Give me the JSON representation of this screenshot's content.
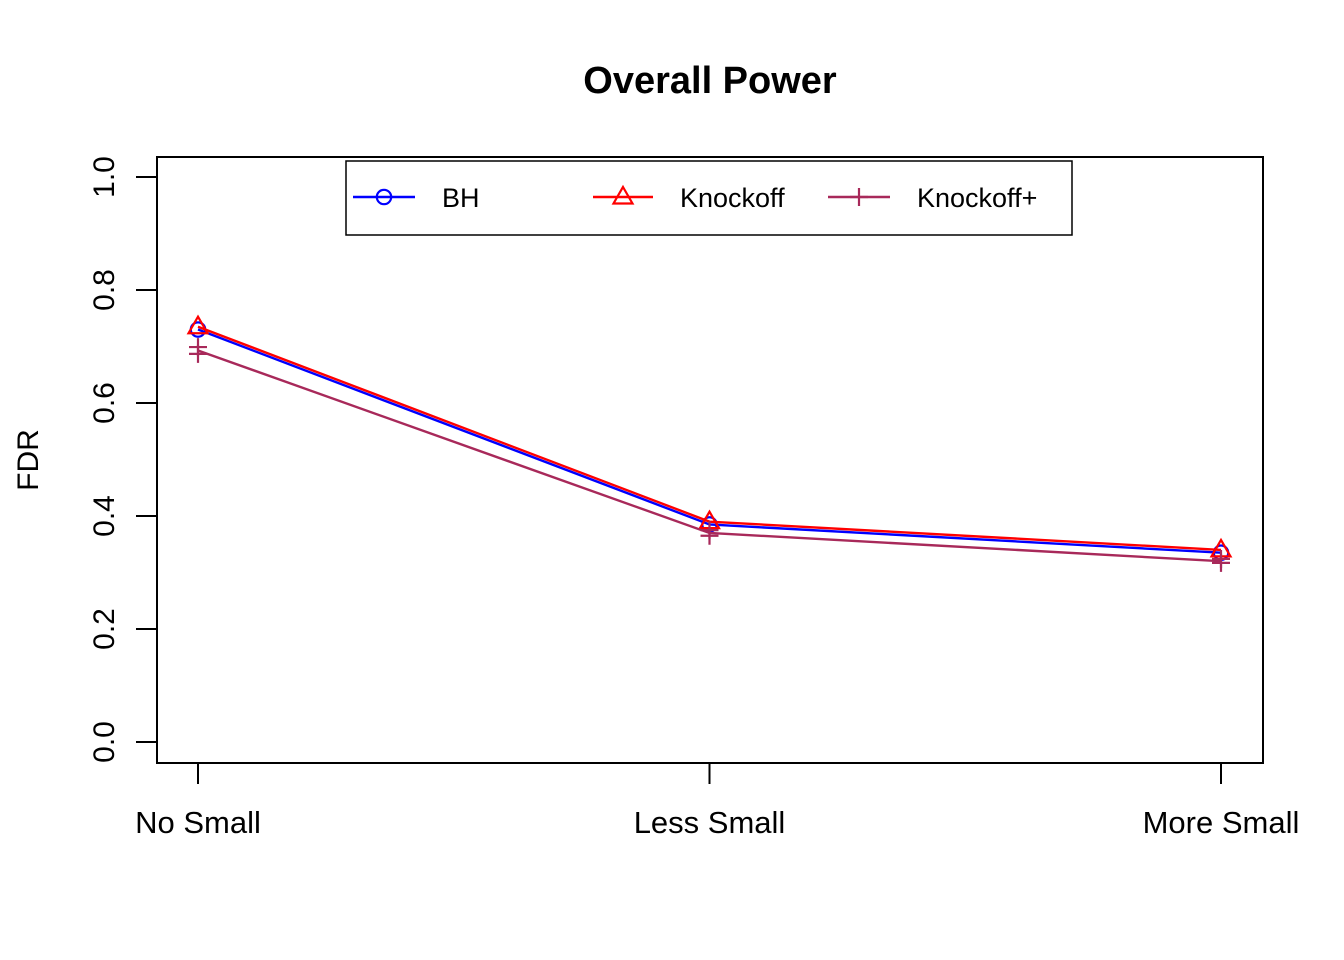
{
  "page": {
    "background": "#ffffff",
    "text_color": "#000000"
  },
  "chart_data": {
    "type": "line",
    "title": "Overall Power",
    "xlabel": "",
    "ylabel": "FDR",
    "categories": [
      "No Small",
      "Less Small",
      "More Small"
    ],
    "ylim": [
      0,
      1
    ],
    "yticks": [
      0.0,
      0.2,
      0.4,
      0.6,
      0.8,
      1.0
    ],
    "ytick_labels": [
      "0.0",
      "0.2",
      "0.4",
      "0.6",
      "0.8",
      "1.0"
    ],
    "grid": false,
    "legend_position": "top-inside",
    "series": [
      {
        "name": "BH",
        "color": "#0000FF",
        "marker": "circle",
        "values": [
          0.73,
          0.385,
          0.335
        ]
      },
      {
        "name": "Knockoff",
        "color": "#FF0000",
        "marker": "triangle",
        "values": [
          0.735,
          0.39,
          0.34
        ]
      },
      {
        "name": "Knockoff+",
        "color": "#A8295A",
        "marker": "plus",
        "values": [
          0.693,
          0.37,
          0.32
        ],
        "marker_values": [
          [
            0.699,
            0.687
          ],
          [
            0.375,
            0.365
          ],
          [
            0.324,
            0.317
          ]
        ]
      }
    ]
  }
}
